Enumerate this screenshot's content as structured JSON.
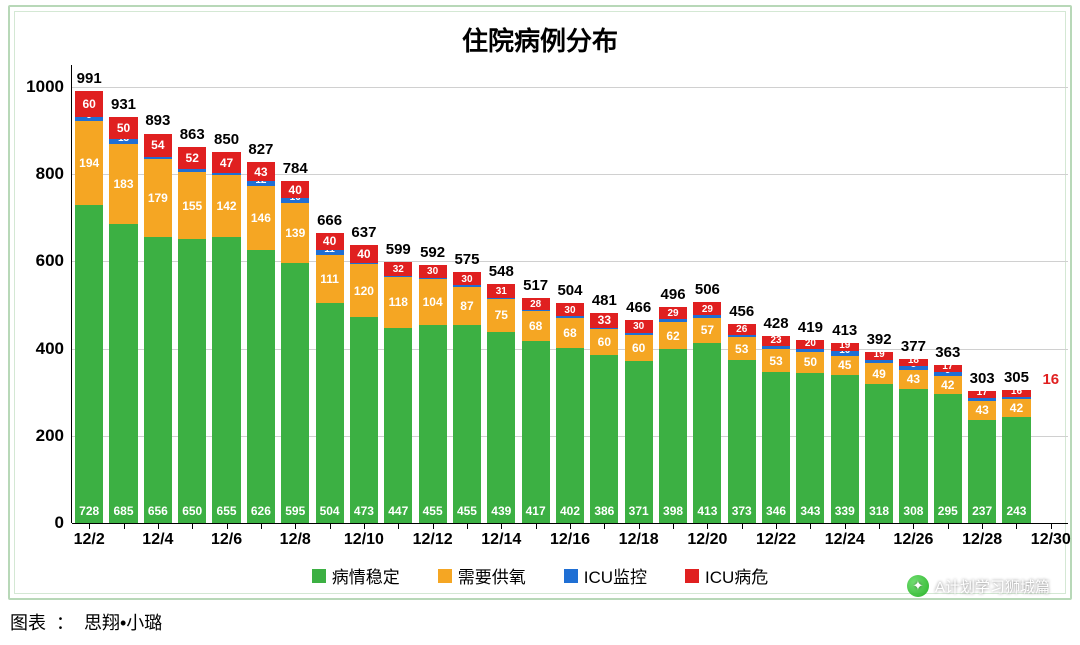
{
  "title": "住院病例分布",
  "caption_prefix": "图表",
  "caption_sep": "：",
  "caption_author": "思翔•小璐",
  "watermark": "A计划学习狮城篇",
  "colors": {
    "stable": "#3cb043",
    "oxygen": "#f5a623",
    "icu_mon": "#1f6fd4",
    "icu_crit": "#e02020",
    "grid": "#d0d0d0",
    "text": "#000000",
    "border": "#b8d8b8",
    "segtext": "#ffffff"
  },
  "fonts": {
    "title_size": 26,
    "axis_size": 17,
    "seg_label_size": 12,
    "total_label_size": 15,
    "legend_size": 17
  },
  "yaxis": {
    "min": 0,
    "max": 1050,
    "ticks": [
      0,
      200,
      400,
      600,
      800,
      1000
    ]
  },
  "xaxis": {
    "all_dates": [
      "12/2",
      "12/3",
      "12/4",
      "12/5",
      "12/6",
      "12/7",
      "12/8",
      "12/9",
      "12/10",
      "12/11",
      "12/12",
      "12/13",
      "12/14",
      "12/15",
      "12/16",
      "12/17",
      "12/18",
      "12/19",
      "12/20",
      "12/21",
      "12/22",
      "12/23",
      "12/24",
      "12/25",
      "12/26",
      "12/27",
      "12/28",
      "12/29",
      "12/30"
    ],
    "shown_ticks": [
      "12/2",
      "12/4",
      "12/6",
      "12/8",
      "12/10",
      "12/12",
      "12/14",
      "12/16",
      "12/18",
      "12/20",
      "12/22",
      "12/24",
      "12/26",
      "12/28",
      "12/30"
    ]
  },
  "legend": [
    {
      "key": "stable",
      "label": "病情稳定"
    },
    {
      "key": "oxygen",
      "label": "需要供氧"
    },
    {
      "key": "icu_mon",
      "label": "ICU监控"
    },
    {
      "key": "icu_crit",
      "label": "ICU病危"
    }
  ],
  "bar_width_ratio": 0.82,
  "series": [
    {
      "date": "12/2",
      "total": 991,
      "stable": 728,
      "oxygen": 194,
      "icu_mon": 9,
      "icu_crit": 60
    },
    {
      "date": "12/3",
      "total": 931,
      "stable": 685,
      "oxygen": 183,
      "icu_mon": 13,
      "icu_crit": 50
    },
    {
      "date": "12/4",
      "total": 893,
      "stable": 656,
      "oxygen": 179,
      "icu_mon": 4,
      "icu_crit": 54
    },
    {
      "date": "12/5",
      "total": 863,
      "stable": 650,
      "oxygen": 155,
      "icu_mon": 6,
      "icu_crit": 52
    },
    {
      "date": "12/6",
      "total": 850,
      "stable": 655,
      "oxygen": 142,
      "icu_mon": 6,
      "icu_crit": 47
    },
    {
      "date": "12/7",
      "total": 827,
      "stable": 626,
      "oxygen": 146,
      "icu_mon": 12,
      "icu_crit": 43
    },
    {
      "date": "12/8",
      "total": 784,
      "stable": 595,
      "oxygen": 139,
      "icu_mon": 10,
      "icu_crit": 40
    },
    {
      "date": "12/9",
      "total": 666,
      "stable": 504,
      "oxygen": 111,
      "icu_mon": 11,
      "icu_crit": 40
    },
    {
      "date": "12/10",
      "total": 637,
      "stable": 473,
      "oxygen": 120,
      "icu_mon": 4,
      "icu_crit": 40
    },
    {
      "date": "12/11",
      "total": 599,
      "stable": 447,
      "oxygen": 118,
      "icu_mon": 2,
      "icu_crit": 32
    },
    {
      "date": "12/12",
      "total": 592,
      "stable": 455,
      "oxygen": 104,
      "icu_mon": 3,
      "icu_crit": 30
    },
    {
      "date": "12/13",
      "total": 575,
      "stable": 455,
      "oxygen": 87,
      "icu_mon": 3,
      "icu_crit": 30
    },
    {
      "date": "12/14",
      "total": 548,
      "stable": 439,
      "oxygen": 75,
      "icu_mon": 3,
      "icu_crit": 31
    },
    {
      "date": "12/15",
      "total": 517,
      "stable": 417,
      "oxygen": 68,
      "icu_mon": 4,
      "icu_crit": 28
    },
    {
      "date": "12/16",
      "total": 504,
      "stable": 402,
      "oxygen": 68,
      "icu_mon": 4,
      "icu_crit": 30
    },
    {
      "date": "12/17",
      "total": 481,
      "stable": 386,
      "oxygen": 60,
      "icu_mon": 2,
      "icu_crit": 33
    },
    {
      "date": "12/18",
      "total": 466,
      "stable": 371,
      "oxygen": 60,
      "icu_mon": 5,
      "icu_crit": 30
    },
    {
      "date": "12/19",
      "total": 496,
      "stable": 398,
      "oxygen": 62,
      "icu_mon": 7,
      "icu_crit": 29
    },
    {
      "date": "12/20",
      "total": 506,
      "stable": 413,
      "oxygen": 57,
      "icu_mon": 7,
      "icu_crit": 29
    },
    {
      "date": "12/21",
      "total": 456,
      "stable": 373,
      "oxygen": 53,
      "icu_mon": 4,
      "icu_crit": 26
    },
    {
      "date": "12/22",
      "total": 428,
      "stable": 346,
      "oxygen": 53,
      "icu_mon": 6,
      "icu_crit": 23
    },
    {
      "date": "12/23",
      "total": 419,
      "stable": 343,
      "oxygen": 50,
      "icu_mon": 6,
      "icu_crit": 20
    },
    {
      "date": "12/24",
      "total": 413,
      "stable": 339,
      "oxygen": 45,
      "icu_mon": 10,
      "icu_crit": 19
    },
    {
      "date": "12/25",
      "total": 392,
      "stable": 318,
      "oxygen": 49,
      "icu_mon": 6,
      "icu_crit": 19
    },
    {
      "date": "12/26",
      "total": 377,
      "stable": 308,
      "oxygen": 43,
      "icu_mon": 8,
      "icu_crit": 18
    },
    {
      "date": "12/27",
      "total": 363,
      "stable": 295,
      "oxygen": 42,
      "icu_mon": 9,
      "icu_crit": 17
    },
    {
      "date": "12/28",
      "total": 303,
      "stable": 237,
      "oxygen": 43,
      "icu_mon": 6,
      "icu_crit": 17
    },
    {
      "date": "12/29",
      "total": 305,
      "stable": 243,
      "oxygen": 42,
      "icu_mon": 4,
      "icu_crit": 16
    },
    {
      "date": "12/30",
      "total": null,
      "stable": null,
      "oxygen": null,
      "icu_mon": null,
      "icu_crit": null,
      "icu_crit_label_only": 16
    }
  ]
}
